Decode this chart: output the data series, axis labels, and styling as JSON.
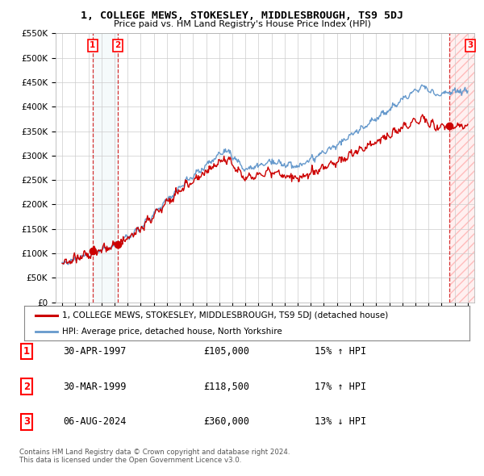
{
  "title": "1, COLLEGE MEWS, STOKESLEY, MIDDLESBROUGH, TS9 5DJ",
  "subtitle": "Price paid vs. HM Land Registry's House Price Index (HPI)",
  "ylim": [
    0,
    550000
  ],
  "yticks": [
    0,
    50000,
    100000,
    150000,
    200000,
    250000,
    300000,
    350000,
    400000,
    450000,
    500000,
    550000
  ],
  "ytick_labels": [
    "£0",
    "£50K",
    "£100K",
    "£150K",
    "£200K",
    "£250K",
    "£300K",
    "£350K",
    "£400K",
    "£450K",
    "£500K",
    "£550K"
  ],
  "xlim_start": 1994.5,
  "xlim_end": 2026.5,
  "sale_color": "#cc0000",
  "hpi_color": "#6699cc",
  "sale1_date": 1997.33,
  "sale1_price": 105000,
  "sale2_date": 1999.25,
  "sale2_price": 118500,
  "sale3_date": 2024.59,
  "sale3_price": 360000,
  "legend_label_red": "1, COLLEGE MEWS, STOKESLEY, MIDDLESBROUGH, TS9 5DJ (detached house)",
  "legend_label_blue": "HPI: Average price, detached house, North Yorkshire",
  "table_entries": [
    {
      "num": "1",
      "date": "30-APR-1997",
      "price": "£105,000",
      "change": "15% ↑ HPI"
    },
    {
      "num": "2",
      "date": "30-MAR-1999",
      "price": "£118,500",
      "change": "17% ↑ HPI"
    },
    {
      "num": "3",
      "date": "06-AUG-2024",
      "price": "£360,000",
      "change": "13% ↓ HPI"
    }
  ],
  "footnote": "Contains HM Land Registry data © Crown copyright and database right 2024.\nThis data is licensed under the Open Government Licence v3.0.",
  "bg_color": "#ffffff",
  "grid_color": "#cccccc"
}
